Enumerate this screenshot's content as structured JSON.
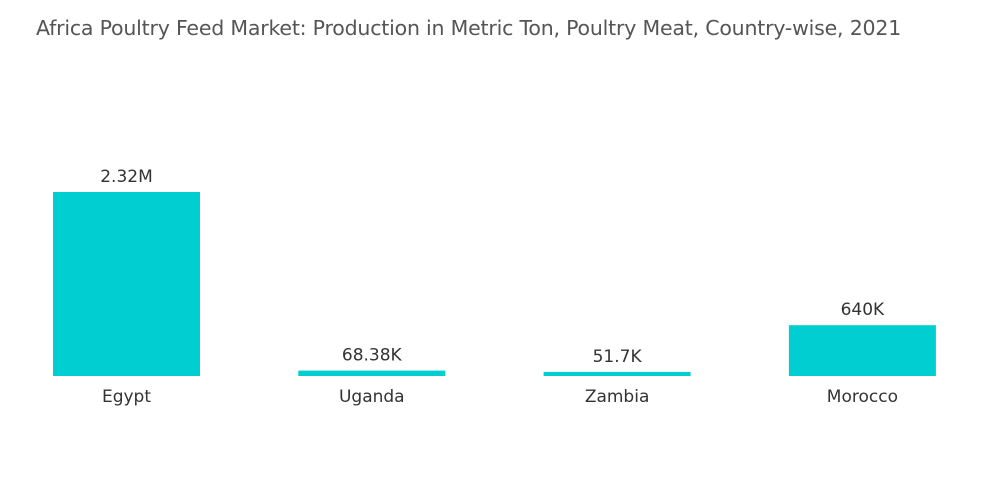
{
  "title": "Africa Poultry Feed Market: Production in Metric Ton, Poultry Meat, Country-wise, 2021",
  "colors": {
    "bar": "#00CED1",
    "text": "#333333",
    "title": "#555555"
  },
  "chart_data": {
    "type": "bar",
    "title": "Africa Poultry Feed Market: Production in Metric Ton, Poultry Meat, Country-wise, 2021",
    "xlabel": "",
    "ylabel": "",
    "categories": [
      "Egypt",
      "Uganda",
      "Zambia",
      "Morocco"
    ],
    "values": [
      2320000,
      68380,
      51700,
      640000
    ],
    "value_labels": [
      "2.32M",
      "68.38K",
      "51.7K",
      "640K"
    ],
    "ylim": [
      0,
      2320000
    ],
    "grid": false,
    "legend": "none"
  }
}
